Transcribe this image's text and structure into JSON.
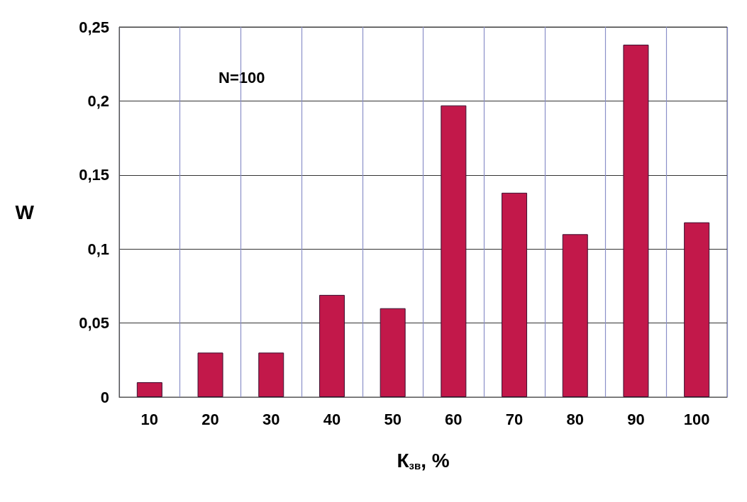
{
  "chart_data": {
    "type": "bar",
    "xlabel": "К$_{зв}$, %",
    "ylabel": "W",
    "annotations": [
      "N=100"
    ],
    "categories": [
      "10",
      "20",
      "30",
      "40",
      "50",
      "60",
      "70",
      "80",
      "90",
      "100"
    ],
    "values": [
      0.01,
      0.03,
      0.03,
      0.069,
      0.06,
      0.197,
      0.138,
      0.11,
      0.238,
      0.118
    ],
    "color": "#c2184a",
    "ylim": [
      0,
      0.25
    ],
    "yticks": [
      0,
      {
        "value": 0.05,
        "label": "0,05"
      },
      {
        "value": 0.1,
        "label": "0,1"
      },
      {
        "value": 0.15,
        "label": "0,15"
      },
      {
        "value": 0.2,
        "label": "0,2"
      },
      {
        "value": 0.25,
        "label": "0,25"
      }
    ],
    "grid": true
  }
}
